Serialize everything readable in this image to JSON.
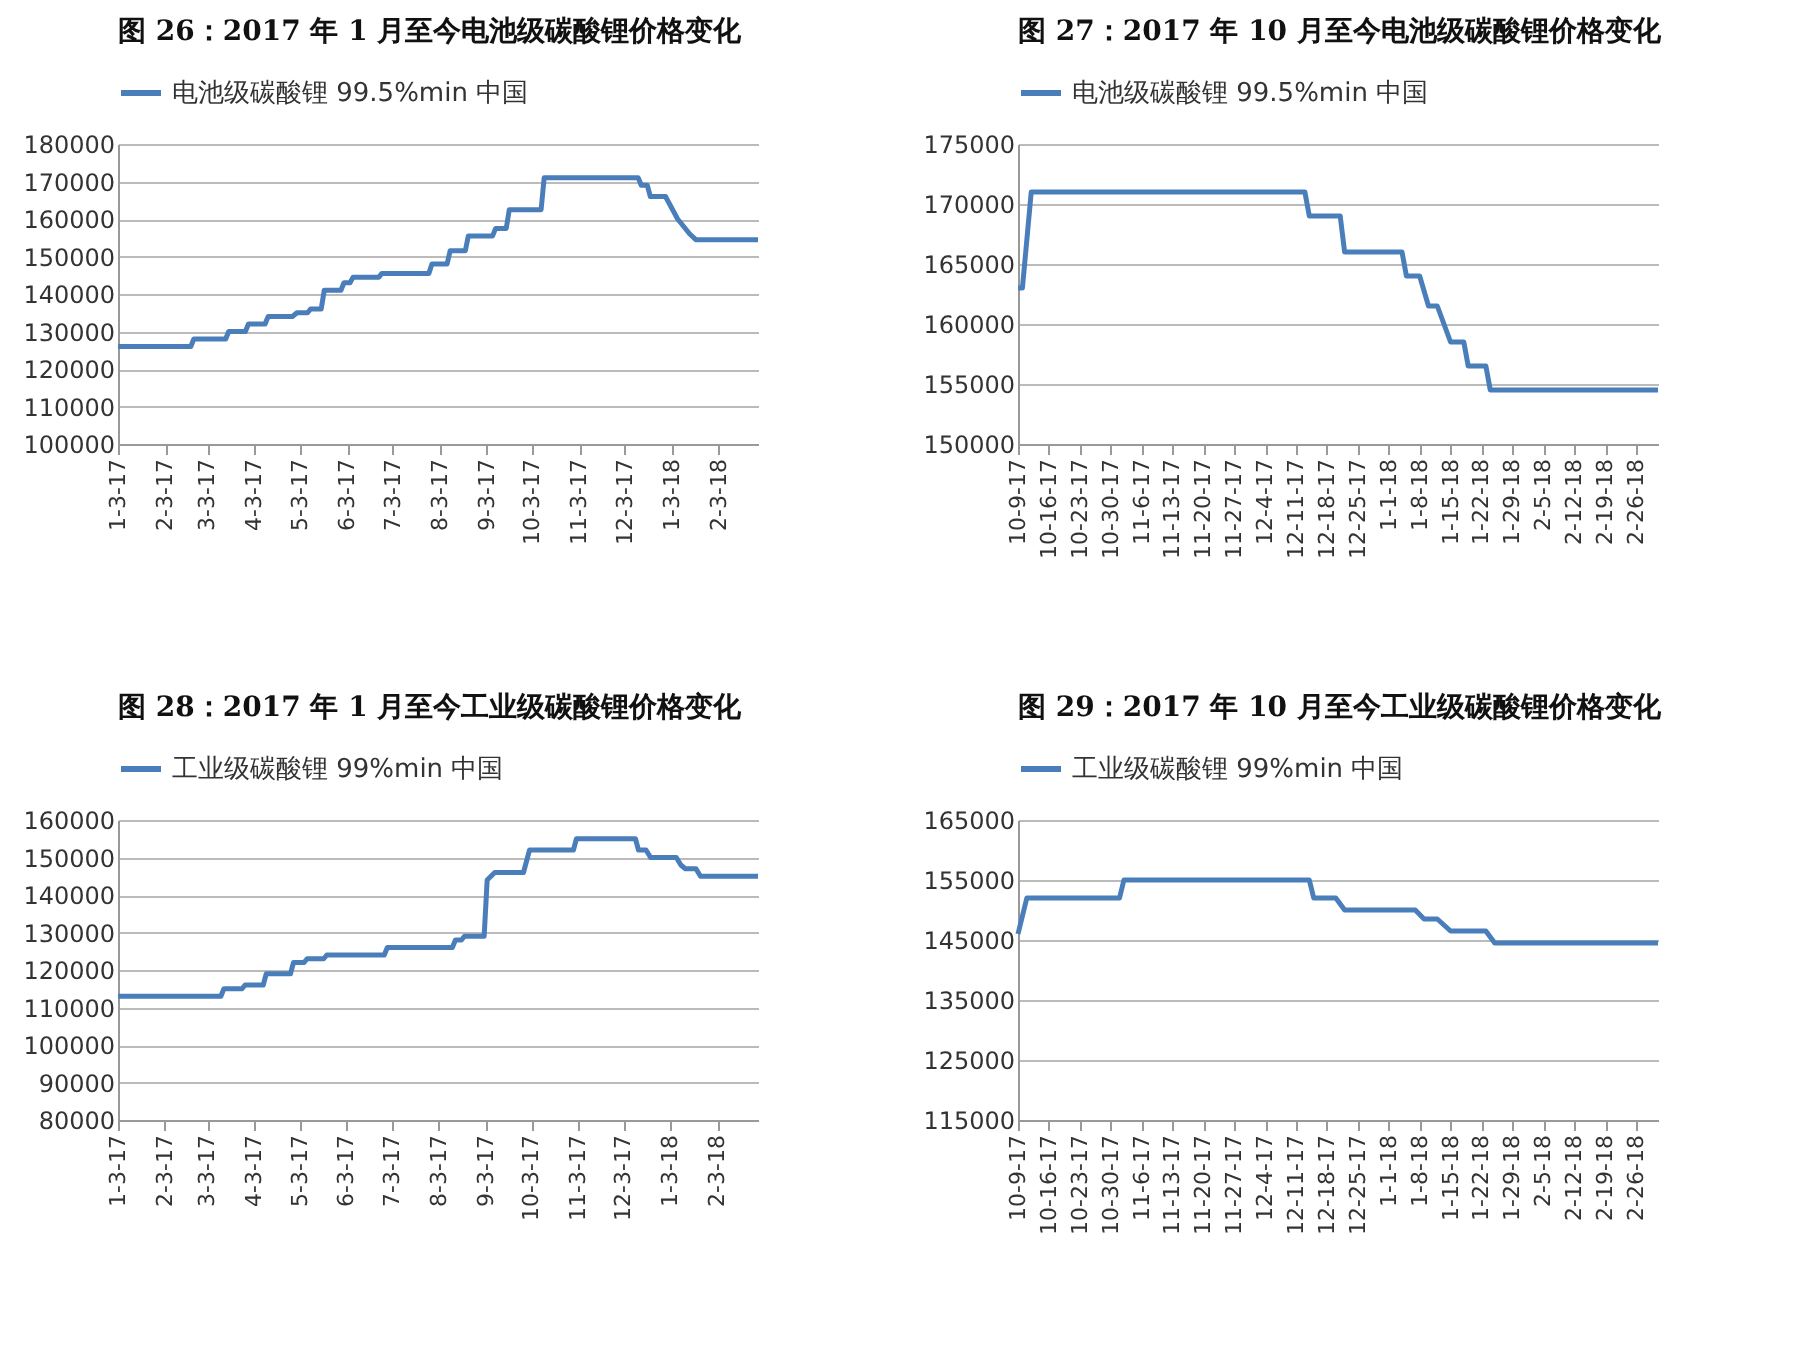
{
  "chart_data": [
    {
      "type": "line",
      "title": "图 26：2017 年 1 月至今电池级碳酸锂价格变化",
      "legend": "top",
      "grid": "y",
      "xlim": [
        "2017-01-03",
        "2018-03-01"
      ],
      "xticks": [
        {
          "value": "2017-01-03",
          "label": "1-3-17"
        },
        {
          "value": "2017-02-03",
          "label": "2-3-17"
        },
        {
          "value": "2017-03-03",
          "label": "3-3-17"
        },
        {
          "value": "2017-04-03",
          "label": "4-3-17"
        },
        {
          "value": "2017-05-03",
          "label": "5-3-17"
        },
        {
          "value": "2017-06-03",
          "label": "6-3-17"
        },
        {
          "value": "2017-07-03",
          "label": "7-3-17"
        },
        {
          "value": "2017-08-03",
          "label": "8-3-17"
        },
        {
          "value": "2017-09-03",
          "label": "9-3-17"
        },
        {
          "value": "2017-10-03",
          "label": "10-3-17"
        },
        {
          "value": "2017-11-03",
          "label": "11-3-17"
        },
        {
          "value": "2017-12-03",
          "label": "12-3-17"
        },
        {
          "value": "2018-01-03",
          "label": "1-3-18"
        },
        {
          "value": "2018-02-03",
          "label": "2-3-18"
        }
      ],
      "ylim": [
        100000,
        180000
      ],
      "yticks": [
        100000,
        110000,
        120000,
        130000,
        140000,
        150000,
        160000,
        170000,
        180000
      ],
      "series": [
        {
          "name": "电池级碳酸锂 99.5%min 中国",
          "color": "#4a7ebb",
          "x": [
            "2017-01-03",
            "2017-02-20",
            "2017-02-22",
            "2017-03-15",
            "2017-03-17",
            "2017-03-28",
            "2017-03-30",
            "2017-04-10",
            "2017-04-12",
            "2017-04-28",
            "2017-05-01",
            "2017-05-08",
            "2017-05-10",
            "2017-05-17",
            "2017-05-19",
            "2017-05-30",
            "2017-06-01",
            "2017-06-05",
            "2017-06-07",
            "2017-06-24",
            "2017-06-26",
            "2017-07-27",
            "2017-07-29",
            "2017-08-08",
            "2017-08-10",
            "2017-08-20",
            "2017-08-22",
            "2017-09-07",
            "2017-09-09",
            "2017-09-16",
            "2017-09-18",
            "2017-10-09",
            "2017-10-11",
            "2017-12-12",
            "2017-12-14",
            "2017-12-18",
            "2017-12-20",
            "2017-12-30",
            "2018-01-03",
            "2018-01-07",
            "2018-01-11",
            "2018-01-15",
            "2018-01-19",
            "2018-03-01"
          ],
          "values": [
            126000,
            126000,
            128000,
            128000,
            130000,
            130000,
            132000,
            132000,
            134000,
            134000,
            135000,
            135000,
            136000,
            136000,
            141000,
            141000,
            143000,
            143000,
            144500,
            144500,
            145500,
            145500,
            148000,
            148000,
            151500,
            151500,
            155500,
            155500,
            157500,
            157500,
            162500,
            162500,
            171000,
            171000,
            169000,
            169000,
            166000,
            166000,
            163000,
            160000,
            158000,
            156000,
            154500,
            154500
          ]
        }
      ]
    },
    {
      "type": "line",
      "title": "图 27：2017 年 10 月至今电池级碳酸锂价格变化",
      "legend": "top",
      "grid": "y",
      "xlim": [
        "2017-10-09",
        "2018-03-03"
      ],
      "xticks": [
        {
          "value": "2017-10-09",
          "label": "10-9-17"
        },
        {
          "value": "2017-10-16",
          "label": "10-16-17"
        },
        {
          "value": "2017-10-23",
          "label": "10-23-17"
        },
        {
          "value": "2017-10-30",
          "label": "10-30-17"
        },
        {
          "value": "2017-11-06",
          "label": "11-6-17"
        },
        {
          "value": "2017-11-13",
          "label": "11-13-17"
        },
        {
          "value": "2017-11-20",
          "label": "11-20-17"
        },
        {
          "value": "2017-11-27",
          "label": "11-27-17"
        },
        {
          "value": "2017-12-04",
          "label": "12-4-17"
        },
        {
          "value": "2017-12-11",
          "label": "12-11-17"
        },
        {
          "value": "2017-12-18",
          "label": "12-18-17"
        },
        {
          "value": "2017-12-25",
          "label": "12-25-17"
        },
        {
          "value": "2018-01-01",
          "label": "1-1-18"
        },
        {
          "value": "2018-01-08",
          "label": "1-8-18"
        },
        {
          "value": "2018-01-15",
          "label": "1-15-18"
        },
        {
          "value": "2018-01-22",
          "label": "1-22-18"
        },
        {
          "value": "2018-01-29",
          "label": "1-29-18"
        },
        {
          "value": "2018-02-05",
          "label": "2-5-18"
        },
        {
          "value": "2018-02-12",
          "label": "2-12-18"
        },
        {
          "value": "2018-02-19",
          "label": "2-19-18"
        },
        {
          "value": "2018-02-26",
          "label": "2-26-18"
        }
      ],
      "ylim": [
        150000,
        175000
      ],
      "yticks": [
        150000,
        155000,
        160000,
        165000,
        170000,
        175000
      ],
      "series": [
        {
          "name": "电池级碳酸锂 99.5%min 中国",
          "color": "#4a7ebb",
          "x": [
            "2017-10-09",
            "2017-10-10",
            "2017-10-12",
            "2017-12-13",
            "2017-12-14",
            "2017-12-21",
            "2017-12-22",
            "2018-01-04",
            "2018-01-05",
            "2018-01-08",
            "2018-01-10",
            "2018-01-12",
            "2018-01-15",
            "2018-01-18",
            "2018-01-19",
            "2018-01-23",
            "2018-01-24",
            "2018-03-03"
          ],
          "values": [
            163000,
            163000,
            171000,
            171000,
            169000,
            169000,
            166000,
            166000,
            164000,
            164000,
            161500,
            161500,
            158500,
            158500,
            156500,
            156500,
            154500,
            154500
          ]
        }
      ]
    },
    {
      "type": "line",
      "title": "图 28：2017 年 1 月至今工业级碳酸锂价格变化",
      "legend": "top",
      "grid": "y",
      "xlim": [
        "2017-01-03",
        "2018-03-02"
      ],
      "xticks": [
        {
          "value": "2017-01-03",
          "label": "1-3-17"
        },
        {
          "value": "2017-02-03",
          "label": "2-3-17"
        },
        {
          "value": "2017-03-03",
          "label": "3-3-17"
        },
        {
          "value": "2017-04-03",
          "label": "4-3-17"
        },
        {
          "value": "2017-05-03",
          "label": "5-3-17"
        },
        {
          "value": "2017-06-03",
          "label": "6-3-17"
        },
        {
          "value": "2017-07-03",
          "label": "7-3-17"
        },
        {
          "value": "2017-08-03",
          "label": "8-3-17"
        },
        {
          "value": "2017-09-03",
          "label": "9-3-17"
        },
        {
          "value": "2017-10-03",
          "label": "10-3-17"
        },
        {
          "value": "2017-11-03",
          "label": "11-3-17"
        },
        {
          "value": "2017-12-03",
          "label": "12-3-17"
        },
        {
          "value": "2018-01-03",
          "label": "1-3-18"
        },
        {
          "value": "2018-02-03",
          "label": "2-3-18"
        }
      ],
      "ylim": [
        80000,
        160000
      ],
      "yticks": [
        80000,
        90000,
        100000,
        110000,
        120000,
        130000,
        140000,
        150000,
        160000
      ],
      "series": [
        {
          "name": "工业级碳酸锂 99%min 中国",
          "color": "#4a7ebb",
          "x": [
            "2017-01-03",
            "2017-03-12",
            "2017-03-14",
            "2017-03-26",
            "2017-03-28",
            "2017-04-09",
            "2017-04-11",
            "2017-04-27",
            "2017-04-29",
            "2017-05-06",
            "2017-05-08",
            "2017-05-19",
            "2017-05-21",
            "2017-06-28",
            "2017-06-30",
            "2017-08-12",
            "2017-08-14",
            "2017-08-18",
            "2017-08-20",
            "2017-09-02",
            "2017-09-04",
            "2017-09-09",
            "2017-09-28",
            "2017-10-02",
            "2017-10-31",
            "2017-11-02",
            "2017-12-11",
            "2017-12-13",
            "2017-12-18",
            "2017-12-21",
            "2018-01-07",
            "2018-01-10",
            "2018-01-13",
            "2018-01-20",
            "2018-01-23",
            "2018-03-02"
          ],
          "values": [
            113000,
            113000,
            115000,
            115000,
            116000,
            116000,
            119000,
            119000,
            122000,
            122000,
            123000,
            123000,
            124000,
            124000,
            126000,
            126000,
            128000,
            128000,
            129000,
            129000,
            144000,
            146000,
            146000,
            152000,
            152000,
            155000,
            155000,
            152000,
            152000,
            150000,
            150000,
            148000,
            147000,
            147000,
            145000,
            145000
          ]
        }
      ]
    },
    {
      "type": "line",
      "title": "图 29：2017 年 10 月至今工业级碳酸锂价格变化",
      "legend": "top",
      "grid": "y",
      "xlim": [
        "2017-10-09",
        "2018-03-03"
      ],
      "xticks": [
        {
          "value": "2017-10-09",
          "label": "10-9-17"
        },
        {
          "value": "2017-10-16",
          "label": "10-16-17"
        },
        {
          "value": "2017-10-23",
          "label": "10-23-17"
        },
        {
          "value": "2017-10-30",
          "label": "10-30-17"
        },
        {
          "value": "2017-11-06",
          "label": "11-6-17"
        },
        {
          "value": "2017-11-13",
          "label": "11-13-17"
        },
        {
          "value": "2017-11-20",
          "label": "11-20-17"
        },
        {
          "value": "2017-11-27",
          "label": "11-27-17"
        },
        {
          "value": "2017-12-04",
          "label": "12-4-17"
        },
        {
          "value": "2017-12-11",
          "label": "12-11-17"
        },
        {
          "value": "2017-12-18",
          "label": "12-18-17"
        },
        {
          "value": "2017-12-25",
          "label": "12-25-17"
        },
        {
          "value": "2018-01-01",
          "label": "1-1-18"
        },
        {
          "value": "2018-01-08",
          "label": "1-8-18"
        },
        {
          "value": "2018-01-15",
          "label": "1-15-18"
        },
        {
          "value": "2018-01-22",
          "label": "1-22-18"
        },
        {
          "value": "2018-01-29",
          "label": "1-29-18"
        },
        {
          "value": "2018-02-05",
          "label": "2-5-18"
        },
        {
          "value": "2018-02-12",
          "label": "2-12-18"
        },
        {
          "value": "2018-02-19",
          "label": "2-19-18"
        },
        {
          "value": "2018-02-26",
          "label": "2-26-18"
        }
      ],
      "ylim": [
        115000,
        165000
      ],
      "yticks": [
        115000,
        125000,
        135000,
        145000,
        155000,
        165000
      ],
      "series": [
        {
          "name": "工业级碳酸锂 99%min 中国",
          "color": "#4a7ebb",
          "x": [
            "2017-10-09",
            "2017-10-11",
            "2017-11-01",
            "2017-11-02",
            "2017-12-14",
            "2017-12-15",
            "2017-12-20",
            "2017-12-22",
            "2018-01-07",
            "2018-01-09",
            "2018-01-12",
            "2018-01-15",
            "2018-01-23",
            "2018-01-25",
            "2018-03-03"
          ],
          "values": [
            146000,
            152000,
            152000,
            155000,
            155000,
            152000,
            152000,
            150000,
            150000,
            148500,
            148500,
            146500,
            146500,
            144500,
            144500
          ]
        }
      ]
    }
  ]
}
